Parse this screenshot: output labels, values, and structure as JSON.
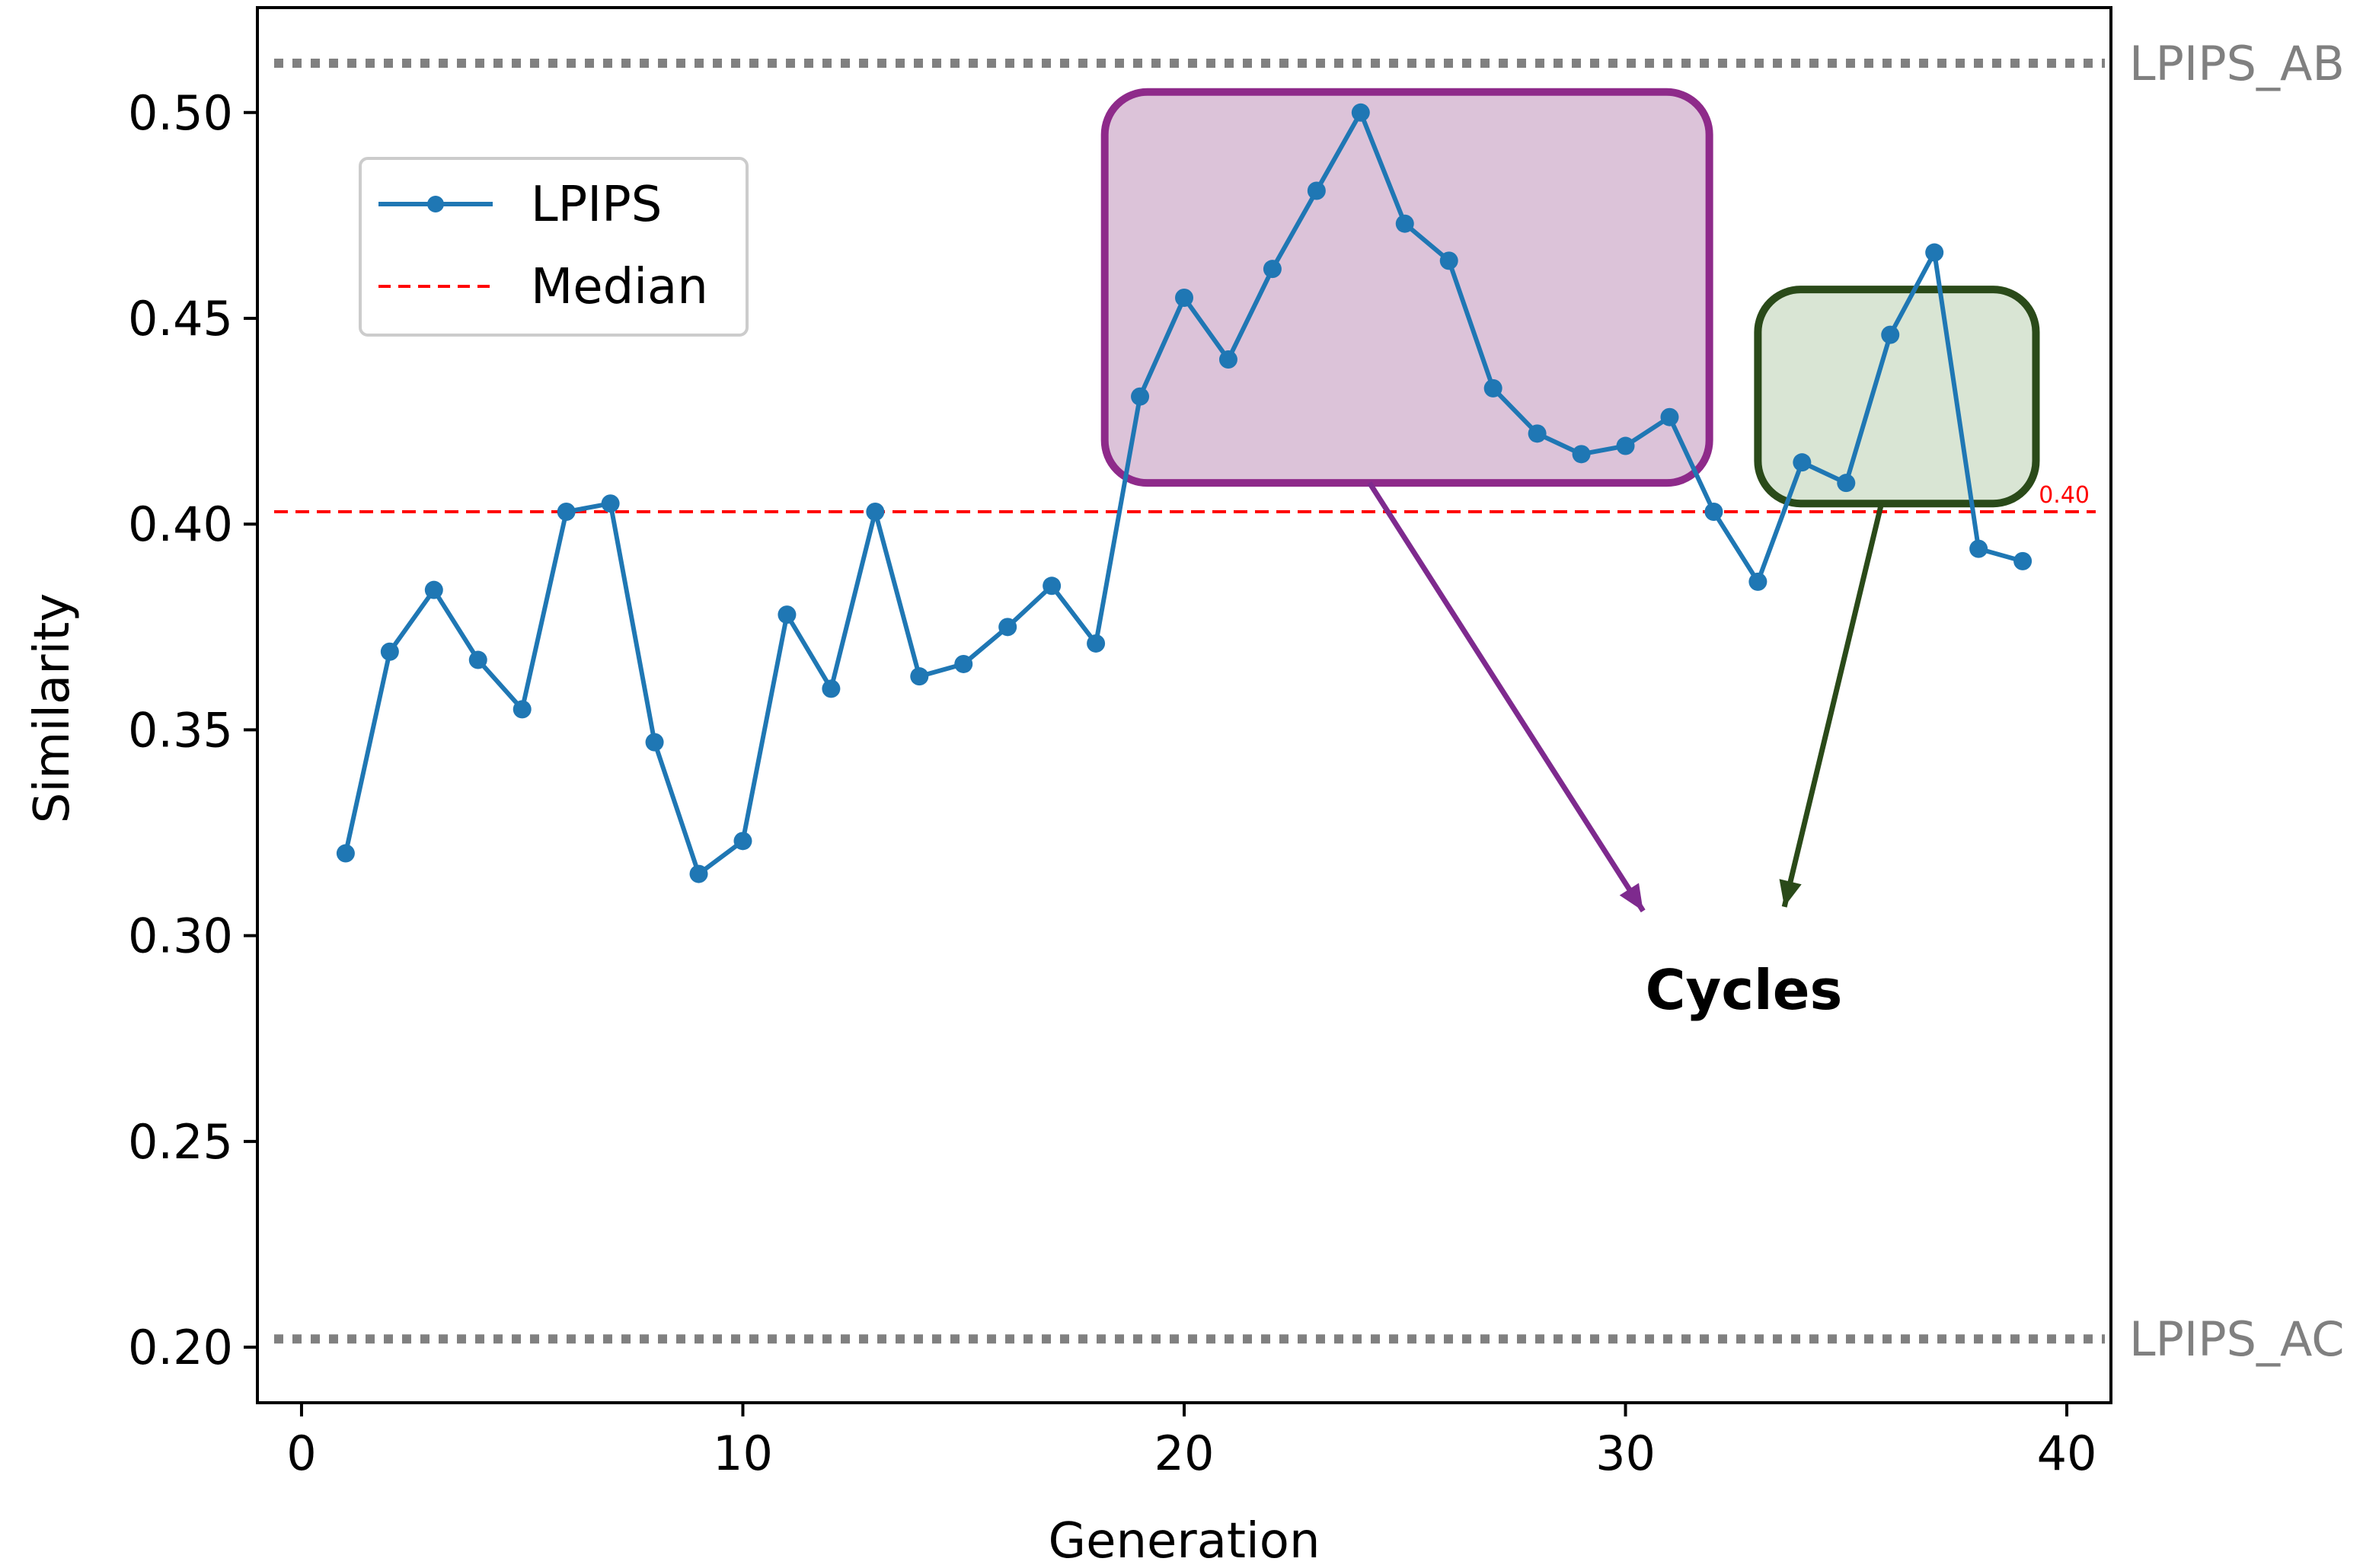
{
  "chart_data": {
    "type": "line",
    "xlabel": "Generation",
    "ylabel": "Similarity",
    "xlim": [
      -1,
      41
    ],
    "ylim": [
      0.1865,
      0.5255
    ],
    "xticks": [
      0,
      10,
      20,
      30,
      40
    ],
    "xtick_labels": [
      "0",
      "10",
      "20",
      "30",
      "40"
    ],
    "yticks": [
      0.2,
      0.25,
      0.3,
      0.35,
      0.4,
      0.45,
      0.5
    ],
    "ytick_labels": [
      "0.20",
      "0.25",
      "0.30",
      "0.35",
      "0.40",
      "0.45",
      "0.50"
    ],
    "grid": false,
    "legend": {
      "location": "upper-left",
      "entries": [
        {
          "label": "LPIPS",
          "style": "line-with-markers"
        },
        {
          "label": "Median",
          "style": "dashed"
        }
      ]
    },
    "series": [
      {
        "name": "LPIPS",
        "color": "#1f77b4",
        "x": [
          1,
          2,
          3,
          4,
          5,
          6,
          7,
          8,
          9,
          10,
          11,
          12,
          13,
          14,
          15,
          16,
          17,
          18,
          19,
          20,
          21,
          22,
          23,
          24,
          25,
          26,
          27,
          28,
          29,
          30,
          31,
          32,
          33,
          34,
          35,
          36,
          37,
          38,
          39
        ],
        "values": [
          0.32,
          0.369,
          0.384,
          0.367,
          0.355,
          0.403,
          0.405,
          0.347,
          0.315,
          0.323,
          0.378,
          0.36,
          0.403,
          0.363,
          0.366,
          0.375,
          0.385,
          0.371,
          0.431,
          0.455,
          0.44,
          0.462,
          0.481,
          0.5,
          0.473,
          0.464,
          0.433,
          0.422,
          0.417,
          0.419,
          0.426,
          0.403,
          0.386,
          0.415,
          0.41,
          0.446,
          0.466,
          0.394,
          0.391
        ]
      }
    ],
    "median": {
      "name": "Median",
      "value": 0.403,
      "label": "0.40",
      "color": "#ff0000"
    },
    "reference_lines": [
      {
        "label": "LPIPS_AB",
        "value": 0.512,
        "color": "#808080"
      },
      {
        "label": "LPIPS_AC",
        "value": 0.202,
        "color": "#808080"
      }
    ],
    "highlights": [
      {
        "x_range": [
          18.2,
          31.9
        ],
        "y_range": [
          0.41,
          0.505
        ],
        "fill": "#d6b9d2",
        "stroke": "#8e2a8a"
      },
      {
        "x_range": [
          33.0,
          39.3
        ],
        "y_range": [
          0.405,
          0.457
        ],
        "fill": "#d2e0cc",
        "stroke": "#2a4a19"
      }
    ],
    "annotation": {
      "text": "Cycles",
      "arrows": [
        {
          "color": "#7e2a8e",
          "from": [
            24.2,
            0.41
          ],
          "to": [
            30.4,
            0.306
          ]
        },
        {
          "color": "#2a4a19",
          "from": [
            35.8,
            0.405
          ],
          "to": [
            33.6,
            0.307
          ]
        }
      ]
    }
  }
}
